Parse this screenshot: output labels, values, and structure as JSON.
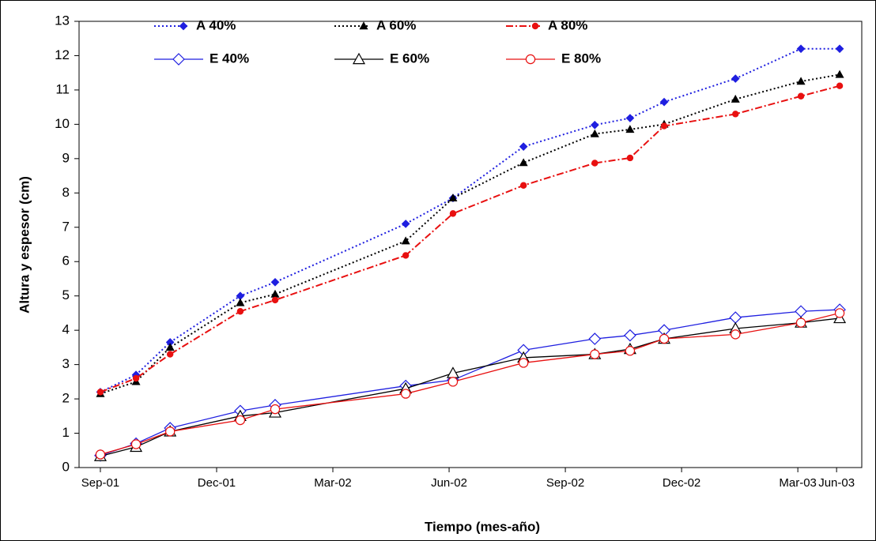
{
  "chart_data": {
    "type": "line",
    "x_label": "Tiempo (mes-año)",
    "y_label": "Altura y espesor (cm)",
    "x": [
      0,
      0.92,
      1.8,
      3.61,
      4.51,
      7.88,
      9.1,
      10.92,
      12.76,
      13.67,
      14.55,
      16.39,
      18.08,
      19.08
    ],
    "xlim": [
      -0.55,
      19.65
    ],
    "xticks": [
      {
        "value": 0,
        "label": "Sep-01"
      },
      {
        "value": 3,
        "label": "Dec-01"
      },
      {
        "value": 6,
        "label": "Mar-02"
      },
      {
        "value": 9,
        "label": "Jun-02"
      },
      {
        "value": 12,
        "label": "Sep-02"
      },
      {
        "value": 15,
        "label": "Dec-02"
      },
      {
        "value": 18,
        "label": "Mar-03"
      },
      {
        "value": 19,
        "label": "Jun-03"
      }
    ],
    "ylim": [
      0,
      13
    ],
    "yticks": [
      0,
      1,
      2,
      3,
      4,
      5,
      6,
      7,
      8,
      9,
      10,
      11,
      12,
      13
    ],
    "grid": false,
    "legend": "top",
    "series": [
      {
        "name": "A 40%",
        "color": "#1f1fe0",
        "dash": "dotted",
        "marker": "diamond",
        "filled": true,
        "values": [
          2.2,
          2.7,
          3.65,
          5.0,
          5.4,
          7.1,
          7.85,
          9.35,
          9.98,
          10.18,
          10.65,
          11.33,
          12.2,
          12.2
        ]
      },
      {
        "name": "A 60%",
        "color": "#000000",
        "dash": "dotted",
        "marker": "triangle",
        "filled": true,
        "values": [
          2.15,
          2.5,
          3.5,
          4.8,
          5.05,
          6.6,
          7.85,
          8.88,
          9.72,
          9.85,
          10.0,
          10.73,
          11.25,
          11.45
        ]
      },
      {
        "name": "A 80%",
        "color": "#e81010",
        "dash": "dashdot",
        "marker": "circle",
        "filled": true,
        "values": [
          2.2,
          2.6,
          3.3,
          4.55,
          4.88,
          6.18,
          7.4,
          8.22,
          8.87,
          9.02,
          9.95,
          10.3,
          10.82,
          11.12
        ]
      },
      {
        "name": "E 40%",
        "color": "#1f1fe0",
        "dash": "solid",
        "marker": "diamond",
        "filled": false,
        "values": [
          0.35,
          0.7,
          1.15,
          1.65,
          1.82,
          2.38,
          2.55,
          3.42,
          3.75,
          3.85,
          4.0,
          4.37,
          4.55,
          4.6
        ]
      },
      {
        "name": "E 60%",
        "color": "#000000",
        "dash": "solid",
        "marker": "triangle",
        "filled": false,
        "values": [
          0.33,
          0.6,
          1.05,
          1.5,
          1.6,
          2.3,
          2.75,
          3.2,
          3.3,
          3.45,
          3.75,
          4.05,
          4.22,
          4.35
        ]
      },
      {
        "name": "E 80%",
        "color": "#e81010",
        "dash": "solid",
        "marker": "circle",
        "filled": false,
        "values": [
          0.38,
          0.68,
          1.05,
          1.38,
          1.7,
          2.15,
          2.5,
          3.05,
          3.3,
          3.4,
          3.75,
          3.88,
          4.22,
          4.5
        ]
      }
    ]
  }
}
